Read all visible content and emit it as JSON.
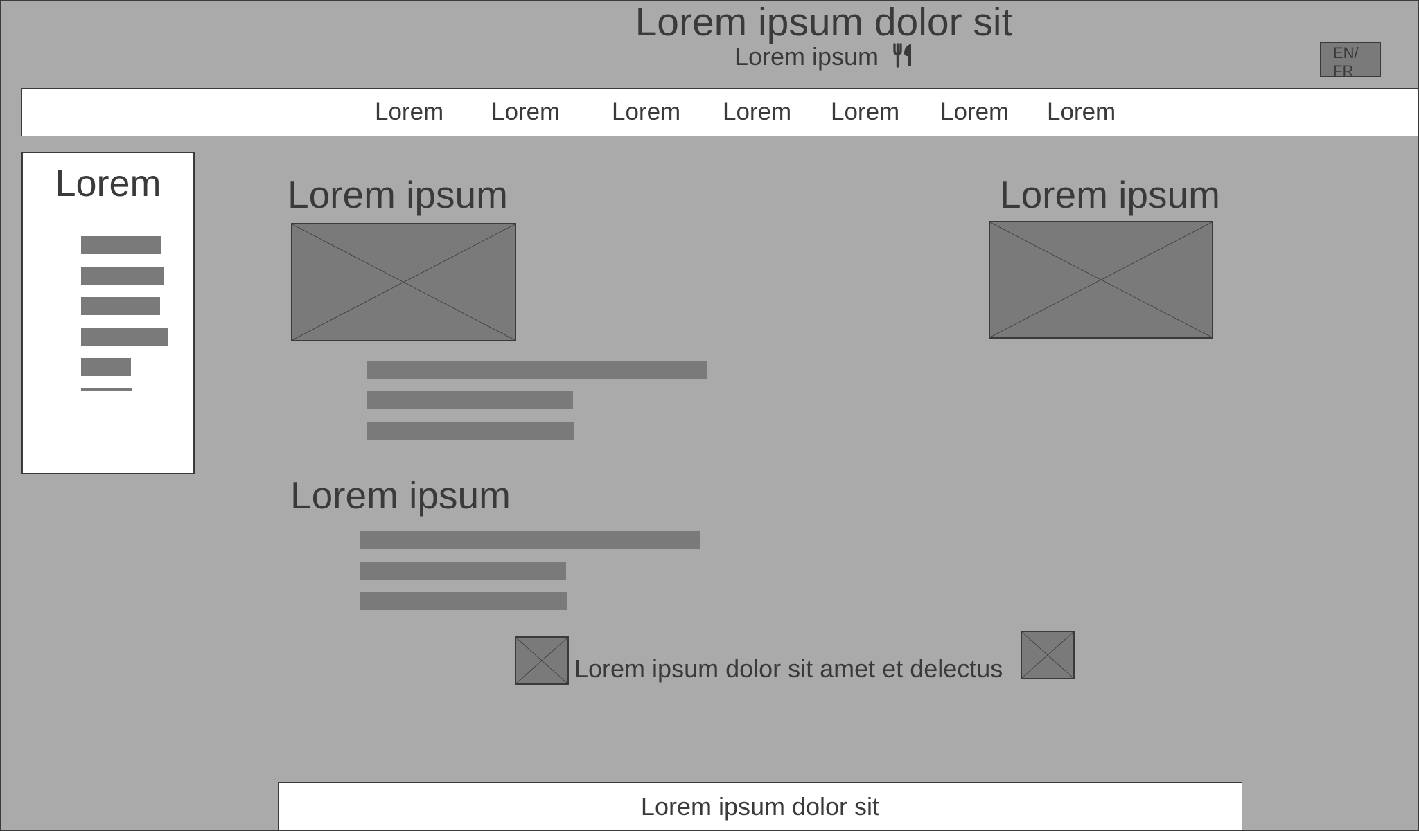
{
  "header": {
    "title": "Lorem ipsum dolor sit",
    "subtitle": "Lorem ipsum",
    "subtitle_icon": "utensils-icon",
    "lang_label": "EN/\nFR"
  },
  "nav": {
    "items": [
      "Lorem",
      "Lorem",
      "Lorem",
      "Lorem",
      "Lorem",
      "Lorem",
      "Lorem"
    ]
  },
  "sidebar": {
    "title": "Lorem"
  },
  "sections": {
    "first_heading": "Lorem ipsum",
    "second_heading": "Lorem ipsum",
    "right_heading": "Lorem ipsum"
  },
  "footer_note": "Lorem ipsum dolor sit amet et delectus",
  "footer": {
    "label": "Lorem ipsum dolor sit"
  },
  "colors": {
    "background": "#aaaaaa",
    "placeholder": "#7a7a7a",
    "panel": "#ffffff",
    "text": "#3a3a3a"
  }
}
